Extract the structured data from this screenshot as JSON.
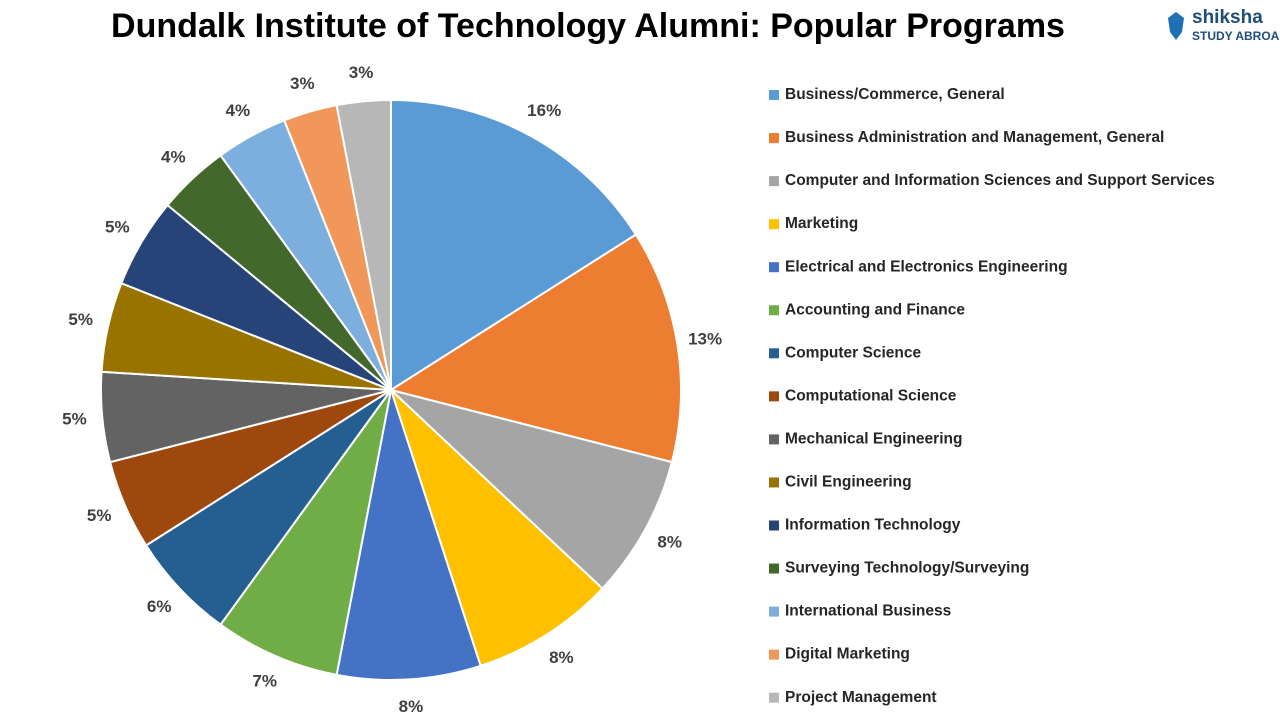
{
  "chart_data": {
    "type": "pie",
    "title": "Dundalk Institute of Technology Alumni: Popular Programs",
    "categories": [
      "Business/Commerce, General",
      "Business Administration and Management, General",
      "Computer and Information Sciences and Support Services",
      "Marketing",
      "Electrical and Electronics Engineering",
      "Accounting and Finance",
      "Computer Science",
      "Computational Science",
      "Mechanical Engineering",
      "Civil Engineering",
      "Information Technology",
      "Surveying Technology/Surveying",
      "International Business",
      "Digital Marketing",
      "Project Management"
    ],
    "values": [
      16,
      13,
      8,
      8,
      8,
      7,
      6,
      5,
      5,
      5,
      5,
      4,
      4,
      3,
      3
    ],
    "value_labels": [
      "16%",
      "13%",
      "8%",
      "8%",
      "8%",
      "7%",
      "6%",
      "5%",
      "5%",
      "5%",
      "5%",
      "4%",
      "4%",
      "3%",
      "3%"
    ],
    "colors": [
      "#5b9bd5",
      "#ed7d31",
      "#a5a5a5",
      "#ffc000",
      "#4472c4",
      "#70ad47",
      "#255e91",
      "#9e480e",
      "#636363",
      "#997300",
      "#264478",
      "#43682b",
      "#7cafdd",
      "#f1975a",
      "#b7b7b7"
    ],
    "legend": "right"
  },
  "logo": {
    "name": "shiksha",
    "tagline": "STUDY ABROAD"
  }
}
